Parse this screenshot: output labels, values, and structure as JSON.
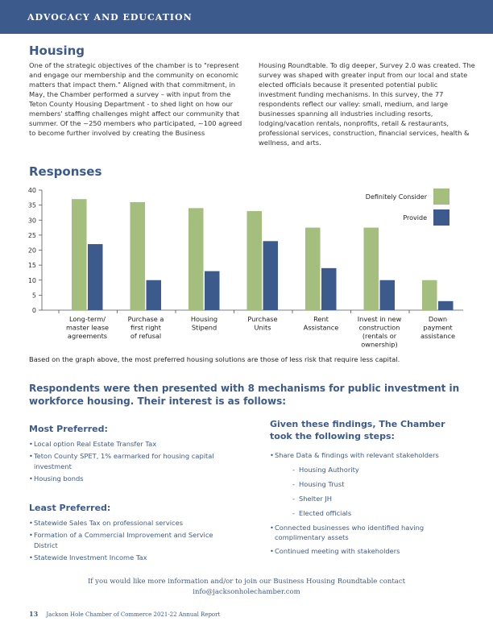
{
  "header": {
    "section_label": "ADVOCACY AND EDUCATION"
  },
  "housing": {
    "title": "Housing",
    "para_left": "One of the strategic objectives of the chamber is to \"represent and engage our membership and the community on economic matters that impact them.\" Aligned with that commitment, in May, the Chamber performed a survey – with input from the Teton County Housing Department - to shed light on how our members' staffing challenges might affect our community that summer. Of the ~250 members who participated, ~100 agreed to become further involved by creating the Business",
    "para_right": "Housing Roundtable. To dig deeper, Survey 2.0 was created. The survey was shaped with greater input from our local and state elected officials because it presented potential public investment funding mechanisms. In this survey, the 77 respondents reflect our valley: small, medium, and large businesses spanning all industries including resorts, lodging/vacation rentals, nonprofits, retail & restaurants, professional services, construction, financial services, health & wellness, and arts."
  },
  "responses": {
    "title": "Responses"
  },
  "chart_data": {
    "type": "bar",
    "categories": [
      "Long-term/\nmaster lease\nagreements",
      "Purchase a\nfirst right\nof refusal",
      "Housing\nStipend",
      "Purchase\nUnits",
      "Rent\nAssistance",
      "Invest in new\nconstruction\n(rentals or\nownership)",
      "Down\npayment\nassistance"
    ],
    "series": [
      {
        "name": "Definitely Consider",
        "color": "#a3be7d",
        "values": [
          37,
          36,
          34,
          33,
          27.5,
          27.5,
          10
        ]
      },
      {
        "name": "Provide",
        "color": "#3d5a8c",
        "values": [
          22,
          10,
          13,
          23,
          14,
          10,
          3
        ]
      }
    ],
    "ylim": [
      0,
      40
    ],
    "yticks": [
      0,
      5,
      10,
      15,
      20,
      25,
      30,
      35,
      40
    ],
    "legend_position": "top-right",
    "grid": false
  },
  "chart_caption": "Based on the graph above, the most preferred housing solutions are those of less risk that require less capital.",
  "mechanisms": {
    "intro": "Respondents were then presented with 8 mechanisms for public investment in workforce housing. Their interest is as follows:",
    "most_title": "Most Preferred:",
    "most_items": [
      "Local option Real Estate Transfer Tax",
      "Teton County SPET, 1% earmarked for housing capital investment",
      "Housing bonds"
    ],
    "least_title": "Least Preferred:",
    "least_items": [
      "Statewide Sales Tax on professional services",
      "Formation of a Commercial Improvement and Service District",
      "Statewide Investment Income Tax"
    ]
  },
  "steps": {
    "title": "Given these findings, The Chamber took the following steps:",
    "item1": "Share Data & findings with relevant stakeholders",
    "subitems": [
      "Housing Authority",
      "Housing Trust",
      "Shelter JH",
      "Elected officials"
    ],
    "item2": "Connected businesses who identified having complimentary assets",
    "item3": "Continued meeting with stakeholders"
  },
  "contact": {
    "line1": "If you would like more information and/or to join our Business Housing Roundtable contact",
    "line2": "info@jacksonholechamber.com"
  },
  "footer": {
    "page_number": "13",
    "report_name": "Jackson Hole Chamber of Commerce 2021-22 Annual Report"
  }
}
